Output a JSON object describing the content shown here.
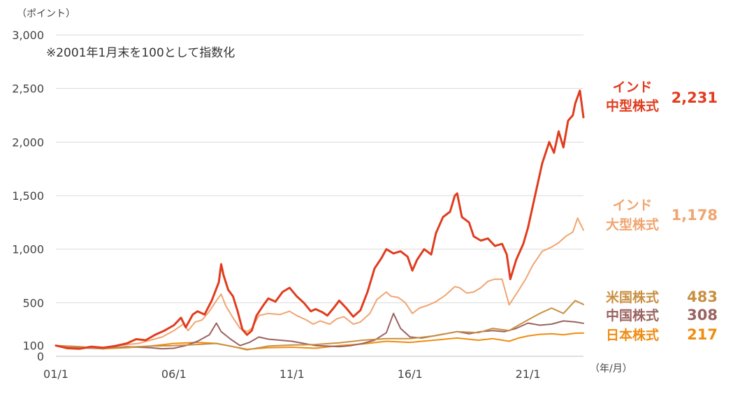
{
  "chart_data": {
    "type": "line",
    "y_unit": "（ポイント）",
    "x_unit": "（年/月）",
    "note": "※2001年1月末を100として指数化",
    "ylim": [
      0,
      3000
    ],
    "y_ticks": [
      0,
      100,
      500,
      1000,
      1500,
      2000,
      2500,
      3000
    ],
    "y_tick_labels": [
      "0",
      "100",
      "500",
      "1,000",
      "1,500",
      "2,000",
      "2,500",
      "3,000"
    ],
    "x_ticks": [
      "01/1",
      "06/1",
      "11/1",
      "16/1",
      "21/1"
    ],
    "grid": true,
    "series": [
      {
        "name_lines": [
          "インド",
          "中型株式"
        ],
        "end_label": "2,231",
        "color": "#e03c1e",
        "width": 3,
        "points": [
          [
            2001.0,
            100
          ],
          [
            2001.5,
            75
          ],
          [
            2002.0,
            70
          ],
          [
            2002.5,
            90
          ],
          [
            2003.0,
            80
          ],
          [
            2003.5,
            95
          ],
          [
            2004.0,
            120
          ],
          [
            2004.4,
            160
          ],
          [
            2004.8,
            150
          ],
          [
            2005.2,
            200
          ],
          [
            2005.6,
            240
          ],
          [
            2006.0,
            290
          ],
          [
            2006.3,
            360
          ],
          [
            2006.5,
            270
          ],
          [
            2006.8,
            390
          ],
          [
            2007.0,
            420
          ],
          [
            2007.3,
            390
          ],
          [
            2007.6,
            520
          ],
          [
            2007.9,
            690
          ],
          [
            2008.0,
            860
          ],
          [
            2008.1,
            760
          ],
          [
            2008.3,
            620
          ],
          [
            2008.5,
            560
          ],
          [
            2008.7,
            420
          ],
          [
            2008.9,
            250
          ],
          [
            2009.1,
            200
          ],
          [
            2009.3,
            240
          ],
          [
            2009.5,
            380
          ],
          [
            2009.8,
            480
          ],
          [
            2010.0,
            540
          ],
          [
            2010.3,
            510
          ],
          [
            2010.6,
            600
          ],
          [
            2010.9,
            640
          ],
          [
            2011.2,
            560
          ],
          [
            2011.5,
            500
          ],
          [
            2011.8,
            420
          ],
          [
            2012.0,
            440
          ],
          [
            2012.3,
            410
          ],
          [
            2012.5,
            380
          ],
          [
            2012.8,
            460
          ],
          [
            2013.0,
            520
          ],
          [
            2013.3,
            450
          ],
          [
            2013.6,
            370
          ],
          [
            2013.9,
            430
          ],
          [
            2014.2,
            600
          ],
          [
            2014.5,
            820
          ],
          [
            2014.8,
            920
          ],
          [
            2015.0,
            1000
          ],
          [
            2015.3,
            960
          ],
          [
            2015.6,
            980
          ],
          [
            2015.9,
            930
          ],
          [
            2016.1,
            800
          ],
          [
            2016.3,
            900
          ],
          [
            2016.6,
            1000
          ],
          [
            2016.9,
            950
          ],
          [
            2017.1,
            1150
          ],
          [
            2017.4,
            1300
          ],
          [
            2017.7,
            1350
          ],
          [
            2017.9,
            1500
          ],
          [
            2018.0,
            1520
          ],
          [
            2018.2,
            1300
          ],
          [
            2018.5,
            1250
          ],
          [
            2018.7,
            1120
          ],
          [
            2019.0,
            1080
          ],
          [
            2019.3,
            1100
          ],
          [
            2019.6,
            1030
          ],
          [
            2019.9,
            1050
          ],
          [
            2020.1,
            950
          ],
          [
            2020.25,
            720
          ],
          [
            2020.5,
            900
          ],
          [
            2020.8,
            1050
          ],
          [
            2021.0,
            1200
          ],
          [
            2021.3,
            1500
          ],
          [
            2021.6,
            1800
          ],
          [
            2021.9,
            2000
          ],
          [
            2022.1,
            1900
          ],
          [
            2022.3,
            2100
          ],
          [
            2022.5,
            1950
          ],
          [
            2022.7,
            2200
          ],
          [
            2022.9,
            2250
          ],
          [
            2023.0,
            2360
          ],
          [
            2023.2,
            2480
          ],
          [
            2023.35,
            2231
          ]
        ]
      },
      {
        "name_lines": [
          "インド",
          "大型株式"
        ],
        "end_label": "1,178",
        "color": "#f0a570",
        "width": 2,
        "points": [
          [
            2001.0,
            100
          ],
          [
            2001.5,
            80
          ],
          [
            2002.0,
            75
          ],
          [
            2002.5,
            82
          ],
          [
            2003.0,
            80
          ],
          [
            2003.5,
            95
          ],
          [
            2004.0,
            110
          ],
          [
            2004.5,
            120
          ],
          [
            2005.0,
            150
          ],
          [
            2005.5,
            180
          ],
          [
            2006.0,
            240
          ],
          [
            2006.4,
            300
          ],
          [
            2006.6,
            240
          ],
          [
            2006.9,
            320
          ],
          [
            2007.2,
            340
          ],
          [
            2007.5,
            420
          ],
          [
            2007.8,
            520
          ],
          [
            2008.0,
            580
          ],
          [
            2008.2,
            470
          ],
          [
            2008.5,
            360
          ],
          [
            2008.8,
            260
          ],
          [
            2009.1,
            230
          ],
          [
            2009.3,
            260
          ],
          [
            2009.6,
            380
          ],
          [
            2010.0,
            400
          ],
          [
            2010.5,
            390
          ],
          [
            2010.9,
            420
          ],
          [
            2011.2,
            380
          ],
          [
            2011.6,
            340
          ],
          [
            2011.9,
            300
          ],
          [
            2012.2,
            330
          ],
          [
            2012.6,
            300
          ],
          [
            2012.9,
            350
          ],
          [
            2013.2,
            370
          ],
          [
            2013.6,
            300
          ],
          [
            2013.9,
            320
          ],
          [
            2014.3,
            400
          ],
          [
            2014.6,
            530
          ],
          [
            2015.0,
            600
          ],
          [
            2015.2,
            560
          ],
          [
            2015.5,
            550
          ],
          [
            2015.8,
            500
          ],
          [
            2016.1,
            400
          ],
          [
            2016.4,
            450
          ],
          [
            2016.8,
            480
          ],
          [
            2017.1,
            510
          ],
          [
            2017.5,
            570
          ],
          [
            2017.9,
            650
          ],
          [
            2018.1,
            640
          ],
          [
            2018.4,
            590
          ],
          [
            2018.7,
            600
          ],
          [
            2019.0,
            640
          ],
          [
            2019.3,
            700
          ],
          [
            2019.6,
            720
          ],
          [
            2019.9,
            720
          ],
          [
            2020.2,
            480
          ],
          [
            2020.5,
            580
          ],
          [
            2020.9,
            720
          ],
          [
            2021.2,
            850
          ],
          [
            2021.6,
            980
          ],
          [
            2022.0,
            1020
          ],
          [
            2022.3,
            1060
          ],
          [
            2022.6,
            1120
          ],
          [
            2022.9,
            1160
          ],
          [
            2023.1,
            1290
          ],
          [
            2023.35,
            1178
          ]
        ]
      },
      {
        "name_lines": [
          "米国株式"
        ],
        "end_label": "483",
        "color": "#c98f40",
        "width": 2,
        "points": [
          [
            2001.0,
            100
          ],
          [
            2002.0,
            90
          ],
          [
            2003.0,
            70
          ],
          [
            2004.0,
            85
          ],
          [
            2005.0,
            95
          ],
          [
            2006.0,
            100
          ],
          [
            2007.0,
            110
          ],
          [
            2007.8,
            120
          ],
          [
            2008.5,
            90
          ],
          [
            2009.1,
            60
          ],
          [
            2010.0,
            95
          ],
          [
            2011.0,
            105
          ],
          [
            2012.0,
            110
          ],
          [
            2013.0,
            125
          ],
          [
            2014.0,
            150
          ],
          [
            2015.0,
            165
          ],
          [
            2016.0,
            165
          ],
          [
            2017.0,
            190
          ],
          [
            2018.0,
            230
          ],
          [
            2018.9,
            220
          ],
          [
            2019.5,
            260
          ],
          [
            2020.2,
            240
          ],
          [
            2020.6,
            290
          ],
          [
            2021.0,
            340
          ],
          [
            2021.5,
            400
          ],
          [
            2022.0,
            450
          ],
          [
            2022.5,
            400
          ],
          [
            2023.0,
            520
          ],
          [
            2023.35,
            483
          ]
        ]
      },
      {
        "name_lines": [
          "中国株式"
        ],
        "end_label": "308",
        "color": "#9a6360",
        "width": 2,
        "points": [
          [
            2001.0,
            100
          ],
          [
            2001.5,
            85
          ],
          [
            2002.0,
            80
          ],
          [
            2002.5,
            75
          ],
          [
            2003.0,
            70
          ],
          [
            2003.5,
            80
          ],
          [
            2004.0,
            90
          ],
          [
            2004.5,
            85
          ],
          [
            2005.0,
            80
          ],
          [
            2005.5,
            70
          ],
          [
            2006.0,
            75
          ],
          [
            2006.5,
            100
          ],
          [
            2007.0,
            140
          ],
          [
            2007.5,
            200
          ],
          [
            2007.8,
            310
          ],
          [
            2008.0,
            230
          ],
          [
            2008.4,
            160
          ],
          [
            2008.8,
            100
          ],
          [
            2009.2,
            130
          ],
          [
            2009.6,
            180
          ],
          [
            2010.0,
            160
          ],
          [
            2010.5,
            150
          ],
          [
            2011.0,
            140
          ],
          [
            2011.5,
            120
          ],
          [
            2012.0,
            100
          ],
          [
            2012.5,
            95
          ],
          [
            2013.0,
            90
          ],
          [
            2013.5,
            100
          ],
          [
            2014.0,
            120
          ],
          [
            2014.5,
            150
          ],
          [
            2015.0,
            220
          ],
          [
            2015.3,
            400
          ],
          [
            2015.6,
            260
          ],
          [
            2016.0,
            180
          ],
          [
            2016.5,
            170
          ],
          [
            2017.0,
            190
          ],
          [
            2017.5,
            210
          ],
          [
            2018.0,
            230
          ],
          [
            2018.5,
            210
          ],
          [
            2019.0,
            230
          ],
          [
            2019.5,
            240
          ],
          [
            2020.0,
            230
          ],
          [
            2020.5,
            260
          ],
          [
            2021.0,
            310
          ],
          [
            2021.5,
            290
          ],
          [
            2022.0,
            300
          ],
          [
            2022.5,
            330
          ],
          [
            2023.0,
            320
          ],
          [
            2023.35,
            308
          ]
        ]
      },
      {
        "name_lines": [
          "日本株式"
        ],
        "end_label": "217",
        "color": "#f08c10",
        "width": 2,
        "points": [
          [
            2001.0,
            100
          ],
          [
            2002.0,
            90
          ],
          [
            2003.0,
            70
          ],
          [
            2004.0,
            80
          ],
          [
            2005.0,
            95
          ],
          [
            2006.0,
            120
          ],
          [
            2007.0,
            130
          ],
          [
            2007.8,
            120
          ],
          [
            2008.5,
            90
          ],
          [
            2009.1,
            65
          ],
          [
            2010.0,
            80
          ],
          [
            2011.0,
            85
          ],
          [
            2012.0,
            75
          ],
          [
            2013.0,
            100
          ],
          [
            2014.0,
            115
          ],
          [
            2015.0,
            140
          ],
          [
            2016.0,
            130
          ],
          [
            2017.0,
            150
          ],
          [
            2018.0,
            170
          ],
          [
            2018.9,
            150
          ],
          [
            2019.5,
            165
          ],
          [
            2020.2,
            140
          ],
          [
            2020.6,
            170
          ],
          [
            2021.0,
            190
          ],
          [
            2021.5,
            205
          ],
          [
            2022.0,
            210
          ],
          [
            2022.5,
            200
          ],
          [
            2023.0,
            215
          ],
          [
            2023.35,
            217
          ]
        ]
      }
    ]
  }
}
